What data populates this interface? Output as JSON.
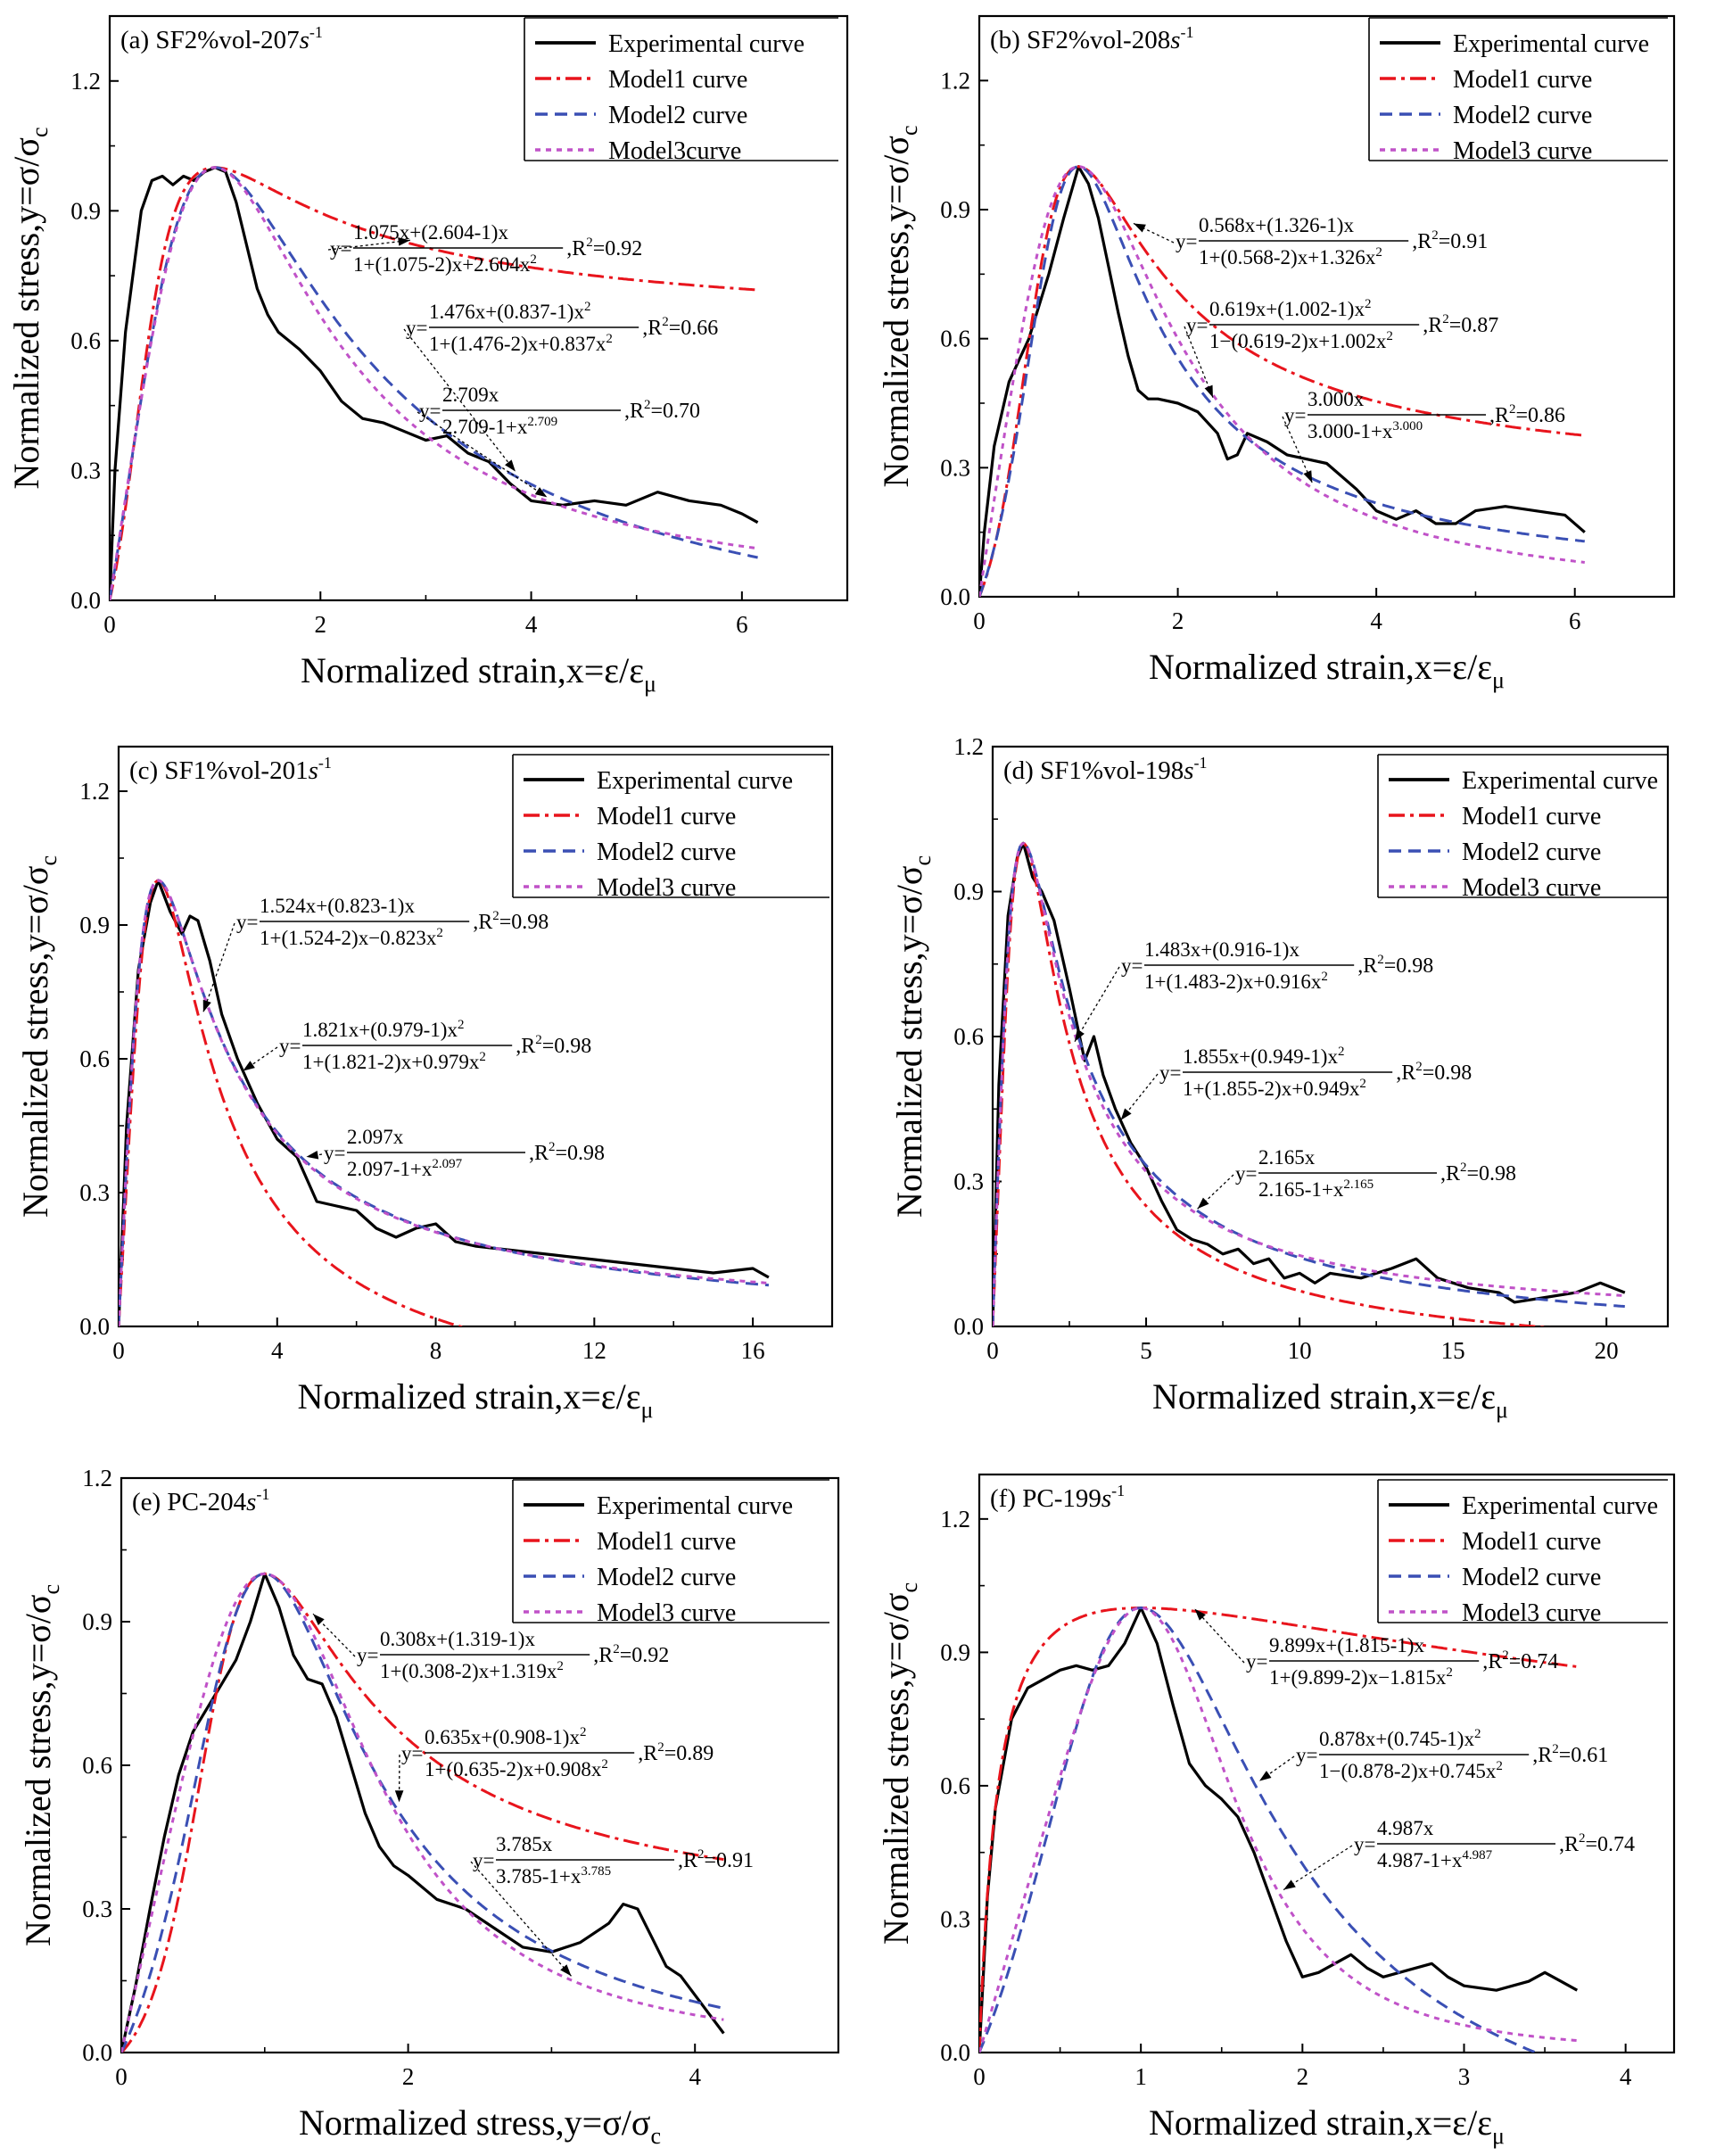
{
  "chart_data": [
    {
      "type": "line",
      "title": "(a) SF2%vol-207s-1",
      "rate_prefix": "(a) SF2%vol-207",
      "rate_unit": "s",
      "rate_exp": "-1",
      "xlabel": "Normalized strain,x=ε/ε",
      "xlabel_sub": "μ",
      "ylabel": "Normalized stress,y=σ/σ",
      "ylabel_sub": "c",
      "xlim": [
        0,
        7
      ],
      "ylim": [
        0,
        1.35
      ],
      "xticks": [
        0,
        2,
        4,
        6
      ],
      "xtick_labels": [
        "0",
        "2",
        "4",
        "6"
      ],
      "yticks": [
        0.0,
        0.3,
        0.6,
        0.9,
        1.2
      ],
      "ytick_labels": [
        "0.0",
        "0.3",
        "0.6",
        "0.9",
        "1.2"
      ],
      "legend": [
        "Experimental curve",
        "Model1 curve",
        "Model2 curve",
        "Model3curve"
      ],
      "series": [
        {
          "name": "Experimental curve",
          "x": [
            0,
            0.05,
            0.15,
            0.3,
            0.4,
            0.5,
            0.6,
            0.7,
            0.8,
            0.9,
            1.0,
            1.1,
            1.2,
            1.3,
            1.4,
            1.5,
            1.6,
            1.8,
            2.0,
            2.2,
            2.4,
            2.6,
            2.8,
            3.0,
            3.2,
            3.4,
            3.6,
            3.8,
            4.0,
            4.3,
            4.6,
            4.9,
            5.2,
            5.5,
            5.8,
            6.0,
            6.15
          ],
          "y": [
            0,
            0.3,
            0.62,
            0.9,
            0.97,
            0.98,
            0.96,
            0.98,
            0.97,
            0.99,
            1.0,
            0.99,
            0.92,
            0.82,
            0.72,
            0.66,
            0.62,
            0.58,
            0.53,
            0.46,
            0.42,
            0.41,
            0.39,
            0.37,
            0.38,
            0.34,
            0.32,
            0.27,
            0.23,
            0.22,
            0.23,
            0.22,
            0.25,
            0.23,
            0.22,
            0.2,
            0.18
          ]
        },
        {
          "name": "Model1 curve",
          "a": 1.075,
          "b": 2.604,
          "x_max": 6.15
        },
        {
          "name": "Model2 curve",
          "a": 1.476,
          "b": 0.837,
          "x_max": 6.15
        },
        {
          "name": "Model3curve",
          "a": 2.709,
          "x_max": 6.15
        }
      ],
      "equations": [
        {
          "numer": "1.075x+(2.604-1)x",
          "denom": "1+(1.075-2)x+2.604x",
          "denom_sup": "2",
          "r2": "=0.92"
        },
        {
          "numer": "1.476x+(0.837-1)x",
          "numer_sup": "2",
          "denom": "1+(1.476-2)x+0.837x",
          "denom_sup": "2",
          "r2": "=0.66"
        },
        {
          "numer": "2.709x",
          "denom": "2.709-1+x",
          "denom_sup": "2.709",
          "r2": "=0.70"
        }
      ]
    },
    {
      "type": "line",
      "title": "(b) SF2%vol-208s-1",
      "rate_prefix": "(b) SF2%vol-208",
      "rate_unit": "s",
      "rate_exp": "-1",
      "xlabel": "Normalized strain,x=ε/ε",
      "xlabel_sub": "μ",
      "ylabel": "Normalized stress,y=σ/σ",
      "ylabel_sub": "c",
      "xlim": [
        0,
        7
      ],
      "ylim": [
        0,
        1.35
      ],
      "xticks": [
        0,
        2,
        4,
        6
      ],
      "xtick_labels": [
        "0",
        "2",
        "4",
        "6"
      ],
      "yticks": [
        0.0,
        0.3,
        0.6,
        0.9,
        1.2
      ],
      "ytick_labels": [
        "0.0",
        "0.3",
        "0.6",
        "0.9",
        "1.2"
      ],
      "legend": [
        "Experimental curve",
        "Model1 curve",
        "Model2 curve",
        "Model3 curve"
      ],
      "series": [
        {
          "name": "Experimental curve",
          "x": [
            0,
            0.05,
            0.15,
            0.3,
            0.5,
            0.7,
            0.85,
            1.0,
            1.1,
            1.2,
            1.3,
            1.4,
            1.5,
            1.6,
            1.7,
            1.8,
            2.0,
            2.2,
            2.4,
            2.5,
            2.6,
            2.7,
            2.9,
            3.1,
            3.3,
            3.5,
            3.8,
            4.0,
            4.2,
            4.4,
            4.6,
            4.8,
            5.0,
            5.3,
            5.6,
            5.9,
            6.1
          ],
          "y": [
            0,
            0.15,
            0.35,
            0.5,
            0.6,
            0.75,
            0.88,
            1.0,
            0.96,
            0.88,
            0.77,
            0.66,
            0.56,
            0.48,
            0.46,
            0.46,
            0.45,
            0.43,
            0.38,
            0.32,
            0.33,
            0.38,
            0.36,
            0.33,
            0.32,
            0.31,
            0.25,
            0.2,
            0.18,
            0.2,
            0.17,
            0.17,
            0.2,
            0.21,
            0.2,
            0.19,
            0.15
          ]
        },
        {
          "name": "Model1 curve",
          "a": 0.568,
          "b": 1.326,
          "x_max": 6.1
        },
        {
          "name": "Model2 curve",
          "a": 0.619,
          "b": 1.002,
          "x_max": 6.1
        },
        {
          "name": "Model3 curve",
          "a": 3.0,
          "x_max": 6.1
        }
      ],
      "equations": [
        {
          "numer": "0.568x+(1.326-1)x",
          "denom": "1+(0.568-2)x+1.326x",
          "denom_sup": "2",
          "r2": "=0.91"
        },
        {
          "numer": "0.619x+(1.002-1)x",
          "numer_sup": "2",
          "denom": "1−(0.619-2)x+1.002x",
          "denom_sup": "2",
          "r2": "=0.87"
        },
        {
          "numer": "3.000x",
          "denom": "3.000-1+x",
          "denom_sup": "3.000",
          "r2": "=0.86"
        }
      ]
    },
    {
      "type": "line",
      "title": "(c) SF1%vol-201s-1",
      "rate_prefix": "(c) SF1%vol-201",
      "rate_unit": "s",
      "rate_exp": "-1",
      "xlabel": "Normalized strain,x=ε/ε",
      "xlabel_sub": "μ",
      "ylabel": "Normalized stress,y=σ/σ",
      "ylabel_sub": "c",
      "xlim": [
        0,
        18
      ],
      "ylim": [
        0,
        1.3
      ],
      "xticks": [
        0,
        4,
        8,
        12,
        16
      ],
      "xtick_labels": [
        "0",
        "4",
        "8",
        "12",
        "16"
      ],
      "yticks": [
        0.0,
        0.3,
        0.6,
        0.9,
        1.2
      ],
      "ytick_labels": [
        "0.0",
        "0.3",
        "0.6",
        "0.9",
        "1.2"
      ],
      "legend": [
        "Experimental curve",
        "Model1 curve",
        "Model2 curve",
        "Model3 curve"
      ],
      "series": [
        {
          "name": "Experimental curve",
          "x": [
            0,
            0.2,
            0.5,
            0.8,
            1.0,
            1.3,
            1.6,
            1.8,
            2.0,
            2.3,
            2.6,
            3.0,
            3.5,
            4.0,
            4.5,
            5.0,
            5.5,
            6.0,
            6.5,
            7.0,
            7.5,
            8.0,
            8.5,
            9.0,
            10.0,
            11.0,
            12.0,
            13.0,
            14.0,
            15.0,
            16.0,
            16.4
          ],
          "y": [
            0,
            0.45,
            0.8,
            0.95,
            1.0,
            0.93,
            0.88,
            0.92,
            0.91,
            0.82,
            0.7,
            0.6,
            0.5,
            0.42,
            0.38,
            0.28,
            0.27,
            0.26,
            0.22,
            0.2,
            0.22,
            0.23,
            0.19,
            0.18,
            0.17,
            0.16,
            0.15,
            0.14,
            0.13,
            0.12,
            0.13,
            0.11
          ]
        },
        {
          "name": "Model1 curve",
          "a": 1.524,
          "b": 0.823,
          "x_max": 16.4
        },
        {
          "name": "Model2 curve",
          "a": 1.821,
          "b": 0.979,
          "x_max": 16.4
        },
        {
          "name": "Model3 curve",
          "a": 2.097,
          "x_max": 16.4
        }
      ],
      "equations": [
        {
          "numer": "1.524x+(0.823-1)x",
          "denom": "1+(1.524-2)x−0.823x",
          "denom_sup": "2",
          "r2": "=0.98"
        },
        {
          "numer": "1.821x+(0.979-1)x",
          "numer_sup": "2",
          "denom": "1+(1.821-2)x+0.979x",
          "denom_sup": "2",
          "r2": "=0.98"
        },
        {
          "numer": "2.097x",
          "denom": "2.097-1+x",
          "denom_sup": "2.097",
          "r2": "=0.98"
        }
      ]
    },
    {
      "type": "line",
      "title": "(d) SF1%vol-198s-1",
      "rate_prefix": "(d) SF1%vol-198",
      "rate_unit": "s",
      "rate_exp": "-1",
      "xlabel": "Normalized strain,x=ε/ε",
      "xlabel_sub": "μ",
      "ylabel": "Normalized stress,y=σ/σ",
      "ylabel_sub": "c",
      "xlim": [
        0,
        22
      ],
      "ylim": [
        0,
        1.2
      ],
      "xticks": [
        0,
        5,
        10,
        15,
        20
      ],
      "xtick_labels": [
        "0",
        "5",
        "10",
        "15",
        "20"
      ],
      "yticks": [
        0.0,
        0.3,
        0.6,
        0.9,
        1.2
      ],
      "ytick_labels": [
        "0.0",
        "0.3",
        "0.6",
        "0.9",
        "1.2"
      ],
      "legend": [
        "Experimental curve",
        "Model1 curve",
        "Model2 curve",
        "Model3 curve"
      ],
      "series": [
        {
          "name": "Experimental curve",
          "x": [
            0,
            0.2,
            0.5,
            0.8,
            1.0,
            1.3,
            1.6,
            2.0,
            2.5,
            3.0,
            3.3,
            3.6,
            4.0,
            4.5,
            5.0,
            5.5,
            6.0,
            6.5,
            7.0,
            7.5,
            8.0,
            8.5,
            9.0,
            9.5,
            10.0,
            10.5,
            11.0,
            12.0,
            13.0,
            13.8,
            14.5,
            15.5,
            16.5,
            17.0,
            18.0,
            19.0,
            19.8,
            20.6
          ],
          "y": [
            0,
            0.5,
            0.85,
            0.97,
            1.0,
            0.93,
            0.9,
            0.84,
            0.7,
            0.55,
            0.6,
            0.52,
            0.45,
            0.38,
            0.33,
            0.26,
            0.2,
            0.18,
            0.17,
            0.15,
            0.16,
            0.13,
            0.14,
            0.1,
            0.11,
            0.09,
            0.11,
            0.1,
            0.12,
            0.14,
            0.1,
            0.08,
            0.07,
            0.05,
            0.06,
            0.07,
            0.09,
            0.07
          ]
        },
        {
          "name": "Model1 curve",
          "a": 1.483,
          "b": 0.916,
          "x_max": 20.6
        },
        {
          "name": "Model2 curve",
          "a": 1.855,
          "b": 0.949,
          "x_max": 20.6
        },
        {
          "name": "Model3 curve",
          "a": 2.165,
          "x_max": 20.6
        }
      ],
      "equations": [
        {
          "numer": "1.483x+(0.916-1)x",
          "denom": "1+(1.483-2)x+0.916x",
          "denom_sup": "2",
          "r2": "=0.98"
        },
        {
          "numer": "1.855x+(0.949-1)x",
          "numer_sup": "2",
          "denom": "1+(1.855-2)x+0.949x",
          "denom_sup": "2",
          "r2": "=0.98"
        },
        {
          "numer": "2.165x",
          "denom": "2.165-1+x",
          "denom_sup": "2.165",
          "r2": "=0.98"
        }
      ]
    },
    {
      "type": "line",
      "title": "(e) PC-204s-1",
      "rate_prefix": "(e) PC-204",
      "rate_unit": "s",
      "rate_exp": "-1",
      "xlabel": "Normalized stress,y=σ/σ",
      "xlabel_sub": "c",
      "ylabel": "Normalized stress,y=σ/σ",
      "ylabel_sub": "c",
      "xlim": [
        0,
        5
      ],
      "ylim": [
        0,
        1.2
      ],
      "xticks": [
        0,
        2,
        4
      ],
      "xtick_labels": [
        "0",
        "2",
        "4"
      ],
      "yticks": [
        0.0,
        0.3,
        0.6,
        0.9,
        1.2
      ],
      "ytick_labels": [
        "0.0",
        "0.3",
        "0.6",
        "0.9",
        "1.2"
      ],
      "legend": [
        "Experimental curve",
        "Model1 curve",
        "Model2 curve",
        "Model3 curve"
      ],
      "series": [
        {
          "name": "Experimental curve",
          "x": [
            0,
            0.1,
            0.2,
            0.3,
            0.4,
            0.5,
            0.6,
            0.7,
            0.8,
            0.9,
            1.0,
            1.1,
            1.2,
            1.3,
            1.4,
            1.5,
            1.6,
            1.7,
            1.8,
            1.9,
            2.0,
            2.2,
            2.4,
            2.6,
            2.8,
            3.0,
            3.2,
            3.4,
            3.5,
            3.6,
            3.7,
            3.8,
            3.9,
            4.0,
            4.1,
            4.2
          ],
          "y": [
            0,
            0.14,
            0.3,
            0.45,
            0.58,
            0.67,
            0.72,
            0.77,
            0.82,
            0.9,
            1.0,
            0.93,
            0.83,
            0.78,
            0.77,
            0.7,
            0.6,
            0.5,
            0.43,
            0.39,
            0.37,
            0.32,
            0.3,
            0.26,
            0.22,
            0.21,
            0.23,
            0.27,
            0.31,
            0.3,
            0.24,
            0.18,
            0.16,
            0.12,
            0.08,
            0.04
          ]
        },
        {
          "name": "Model1 curve",
          "a": 0.308,
          "b": 1.319,
          "x_max": 4.2
        },
        {
          "name": "Model2 curve",
          "a": 0.635,
          "b": 0.908,
          "x_max": 4.2
        },
        {
          "name": "Model3 curve",
          "a": 3.785,
          "x_max": 4.2
        }
      ],
      "equations": [
        {
          "numer": "0.308x+(1.319-1)x",
          "denom": "1+(0.308-2)x+1.319x",
          "denom_sup": "2",
          "r2": "=0.92",
          "lhs": "y="
        },
        {
          "numer": "0.635x+(0.908-1)x",
          "numer_sup": "2",
          "denom": "1+(0.635-2)x+0.908x",
          "denom_sup": "2",
          "r2": "=0.89",
          "lhs": "y="
        },
        {
          "numer": "3.785x",
          "denom": "3.785-1+x",
          "denom_sup": "3.785",
          "r2": "=0.91",
          "lhs": "y="
        }
      ]
    },
    {
      "type": "line",
      "title": "(f) PC-199s-1",
      "rate_prefix": "(f) PC-199",
      "rate_unit": "s",
      "rate_exp": "-1",
      "xlabel": "Normalized strain,x=ε/ε",
      "xlabel_sub": "μ",
      "ylabel": "Normalized stress,y=σ/σ",
      "ylabel_sub": "c",
      "xlim": [
        0,
        4.3
      ],
      "ylim": [
        0,
        1.3
      ],
      "xticks": [
        0,
        1,
        2,
        3,
        4
      ],
      "xtick_labels": [
        "0",
        "1",
        "2",
        "3",
        "4"
      ],
      "yticks": [
        0.0,
        0.3,
        0.6,
        0.9,
        1.2
      ],
      "ytick_labels": [
        "0.0",
        "0.3",
        "0.6",
        "0.9",
        "1.2"
      ],
      "legend": [
        "Experimental curve",
        "Model1 curve",
        "Model2 curve",
        "Model3 curve"
      ],
      "series": [
        {
          "name": "Experimental curve",
          "x": [
            0,
            0.05,
            0.1,
            0.2,
            0.3,
            0.4,
            0.5,
            0.6,
            0.7,
            0.8,
            0.9,
            1.0,
            1.1,
            1.2,
            1.3,
            1.4,
            1.5,
            1.6,
            1.7,
            1.8,
            1.9,
            2.0,
            2.1,
            2.2,
            2.3,
            2.4,
            2.5,
            2.6,
            2.7,
            2.8,
            2.9,
            3.0,
            3.2,
            3.4,
            3.5,
            3.6,
            3.7
          ],
          "y": [
            0,
            0.35,
            0.55,
            0.75,
            0.82,
            0.84,
            0.86,
            0.87,
            0.86,
            0.87,
            0.92,
            1.0,
            0.92,
            0.78,
            0.65,
            0.6,
            0.57,
            0.53,
            0.45,
            0.35,
            0.25,
            0.17,
            0.18,
            0.2,
            0.22,
            0.19,
            0.17,
            0.18,
            0.19,
            0.2,
            0.17,
            0.15,
            0.14,
            0.16,
            0.18,
            0.16,
            0.14
          ]
        },
        {
          "name": "Model1 curve",
          "a": 9.899,
          "b": 1.815,
          "x_max": 3.7
        },
        {
          "name": "Model2 curve",
          "a": 0.878,
          "b": 0.745,
          "x_max": 3.7
        },
        {
          "name": "Model3 curve",
          "a": 4.987,
          "x_max": 3.7
        }
      ],
      "equations": [
        {
          "numer": "9.899x+(1.815-1)x",
          "denom": "1+(9.899-2)x−1.815x",
          "denom_sup": "2",
          "r2": "=0.74"
        },
        {
          "numer": "0.878x+(0.745-1)x",
          "numer_sup": "2",
          "denom": "1−(0.878-2)x+0.745x",
          "denom_sup": "2",
          "r2": "=0.61"
        },
        {
          "numer": "4.987x",
          "denom": "4.987-1+x",
          "denom_sup": "4.987",
          "r2": "=0.74"
        }
      ]
    }
  ],
  "common": {
    "eq_lhs": "y=",
    "r2_label": "R",
    "r2_sup": "2"
  },
  "colors": {
    "experimental": "#000000",
    "model1": "#e8141c",
    "model2": "#3a4fb4",
    "model3": "#c052c8"
  }
}
